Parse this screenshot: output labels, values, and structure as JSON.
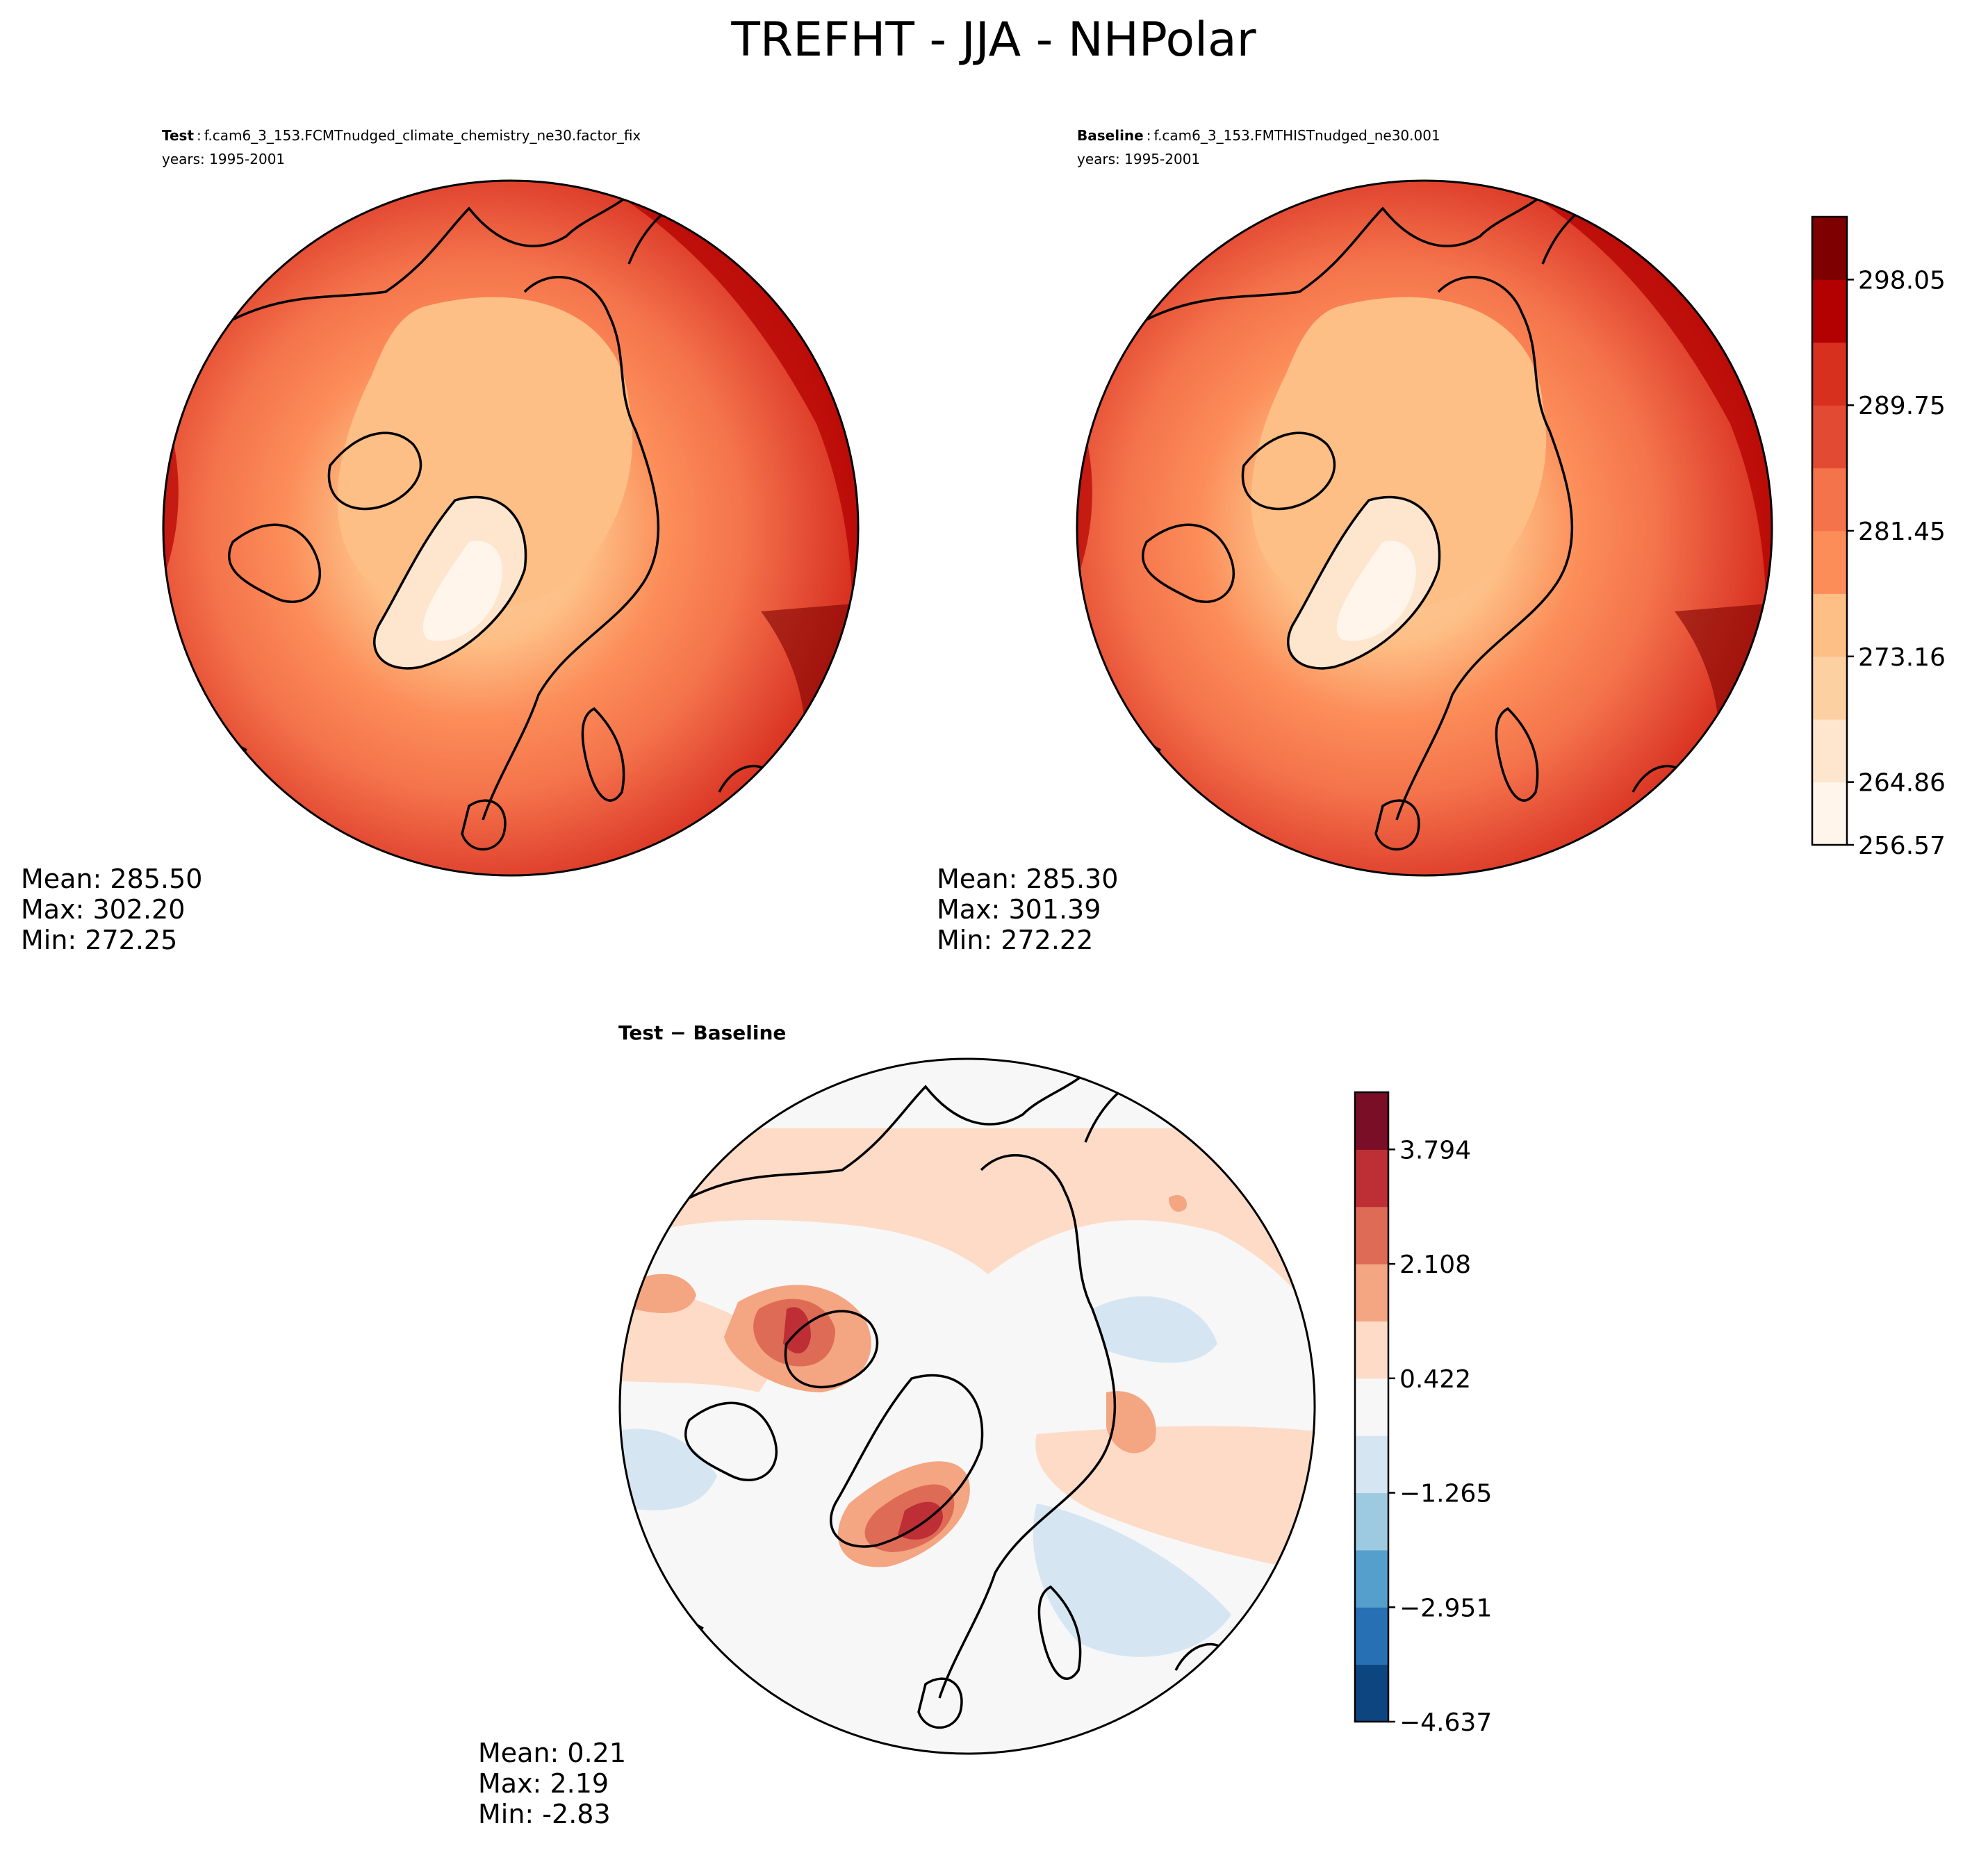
{
  "figure": {
    "title": "TREFHT - JJA - NHPolar"
  },
  "panels": [
    {
      "id": "test",
      "label_bold": "Test",
      "label_sep": ":",
      "case": "f.cam6_3_153.FCMTnudged_climate_chemistry_ne30.factor_fix",
      "years": "years: 1995-2001",
      "stats": {
        "mean": "Mean: 285.50",
        "max": "Max: 302.20",
        "min": "Min: 272.25"
      }
    },
    {
      "id": "baseline",
      "label_bold": "Baseline",
      "label_sep": ":",
      "case": "f.cam6_3_153.FMTHISTnudged_ne30.001",
      "years": "years: 1995-2001",
      "stats": {
        "mean": "Mean: 285.30",
        "max": "Max: 301.39",
        "min": "Min: 272.22"
      }
    },
    {
      "id": "diff",
      "label_bold": "Test − Baseline",
      "stats": {
        "mean": "Mean:  0.21",
        "max": "Max:  2.19",
        "min": "Min: -2.83"
      }
    }
  ],
  "colorbars": {
    "absolute": {
      "tick_labels": [
        "298.05",
        "289.75",
        "281.45",
        "273.16",
        "264.86",
        "256.57"
      ],
      "colors": [
        "#fff5eb",
        "#fee6ce",
        "#fdd0a2",
        "#fdbf86",
        "#fc8d59",
        "#f4734b",
        "#e34a33",
        "#d7301f",
        "#b30000",
        "#7f0000"
      ]
    },
    "difference": {
      "tick_labels": [
        "3.794",
        "2.108",
        "0.422",
        "−1.265",
        "−2.951",
        "−4.637"
      ],
      "colors": [
        "#0d4580",
        "#2870b4",
        "#559fcc",
        "#9ecae1",
        "#d5e6f2",
        "#f7f7f7",
        "#fddbc7",
        "#f4a582",
        "#de6b55",
        "#bd2e35",
        "#7a0e26"
      ]
    }
  }
}
